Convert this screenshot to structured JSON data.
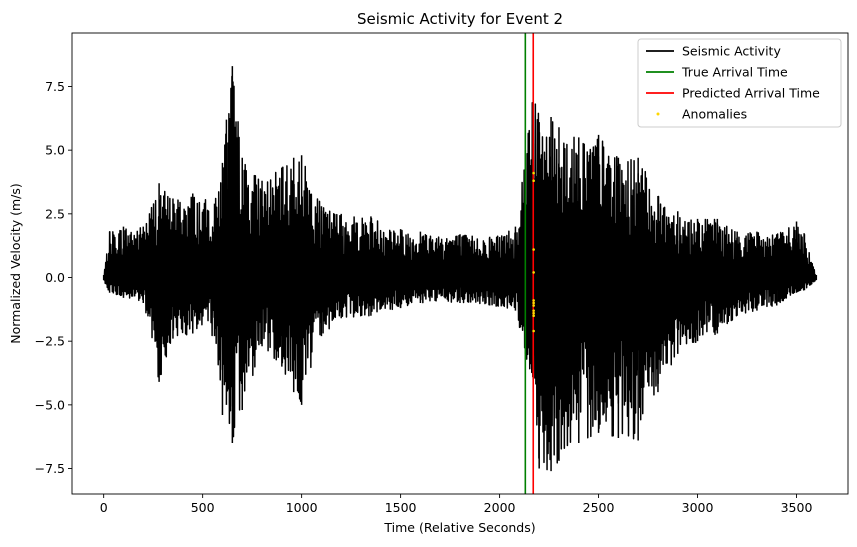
{
  "chart_data": {
    "type": "line",
    "title": "Seismic Activity for Event 2",
    "xlabel": "Time (Relative Seconds)",
    "ylabel": "Normalized Velocity (m/s)",
    "xlim": [
      -160,
      3760
    ],
    "ylim": [
      -8.5,
      9.6
    ],
    "x_ticks": [
      0,
      500,
      1000,
      1500,
      2000,
      2500,
      3000,
      3500
    ],
    "y_ticks": [
      -7.5,
      -5.0,
      -2.5,
      0.0,
      2.5,
      5.0,
      7.5
    ],
    "y_tick_labels": [
      "−7.5",
      "−5.0",
      "−2.5",
      "0.0",
      "2.5",
      "5.0",
      "7.5"
    ],
    "grid": false,
    "legend_position": "top-right",
    "series": [
      {
        "name": "Seismic Activity",
        "color": "#000000",
        "kind": "line",
        "envelope_x": [
          0,
          30,
          100,
          200,
          280,
          350,
          450,
          560,
          600,
          620,
          650,
          700,
          800,
          900,
          960,
          1000,
          1100,
          1200,
          1350,
          1500,
          1600,
          1800,
          1950,
          2080,
          2130,
          2170,
          2200,
          2260,
          2300,
          2400,
          2500,
          2600,
          2700,
          2800,
          2900,
          3000,
          3100,
          3200,
          3300,
          3400,
          3500,
          3540,
          3600
        ],
        "envelope_upper": [
          0.1,
          1.8,
          2.0,
          2.0,
          3.7,
          3.1,
          3.3,
          2.9,
          4.5,
          6.2,
          8.3,
          4.7,
          3.8,
          4.3,
          4.7,
          4.8,
          2.8,
          2.5,
          2.4,
          1.9,
          1.8,
          1.7,
          1.6,
          2.0,
          5.0,
          8.8,
          6.1,
          6.3,
          5.9,
          5.5,
          5.6,
          4.7,
          4.7,
          3.2,
          2.6,
          2.3,
          2.3,
          1.8,
          1.8,
          1.7,
          2.2,
          1.7,
          0.1
        ],
        "envelope_lower": [
          -0.1,
          -0.6,
          -0.8,
          -1.0,
          -4.1,
          -2.4,
          -2.2,
          -2.3,
          -5.4,
          -5.0,
          -6.5,
          -5.2,
          -2.7,
          -3.5,
          -4.5,
          -5.0,
          -2.3,
          -1.6,
          -1.5,
          -1.2,
          -1.0,
          -1.0,
          -1.1,
          -1.3,
          -3.0,
          -4.5,
          -7.5,
          -7.6,
          -7.2,
          -6.5,
          -6.1,
          -6.3,
          -6.4,
          -4.5,
          -3.0,
          -2.5,
          -2.2,
          -1.5,
          -1.3,
          -1.1,
          -0.6,
          -0.5,
          -0.1
        ]
      },
      {
        "name": "True Arrival Time",
        "color": "#008000",
        "kind": "vline",
        "x": 2130
      },
      {
        "name": "Predicted Arrival Time",
        "color": "#ff0000",
        "kind": "vline",
        "x": 2170
      },
      {
        "name": "Anomalies",
        "color": "#ffd700",
        "kind": "scatter",
        "x": [
          2172,
          2172,
          2172,
          2172,
          2172,
          2172,
          2172,
          2172,
          2172,
          2172,
          2172
        ],
        "y": [
          4.1,
          3.8,
          1.1,
          0.2,
          -0.9,
          -1.0,
          -1.1,
          -1.3,
          -1.4,
          -1.5,
          -2.1
        ]
      }
    ]
  }
}
